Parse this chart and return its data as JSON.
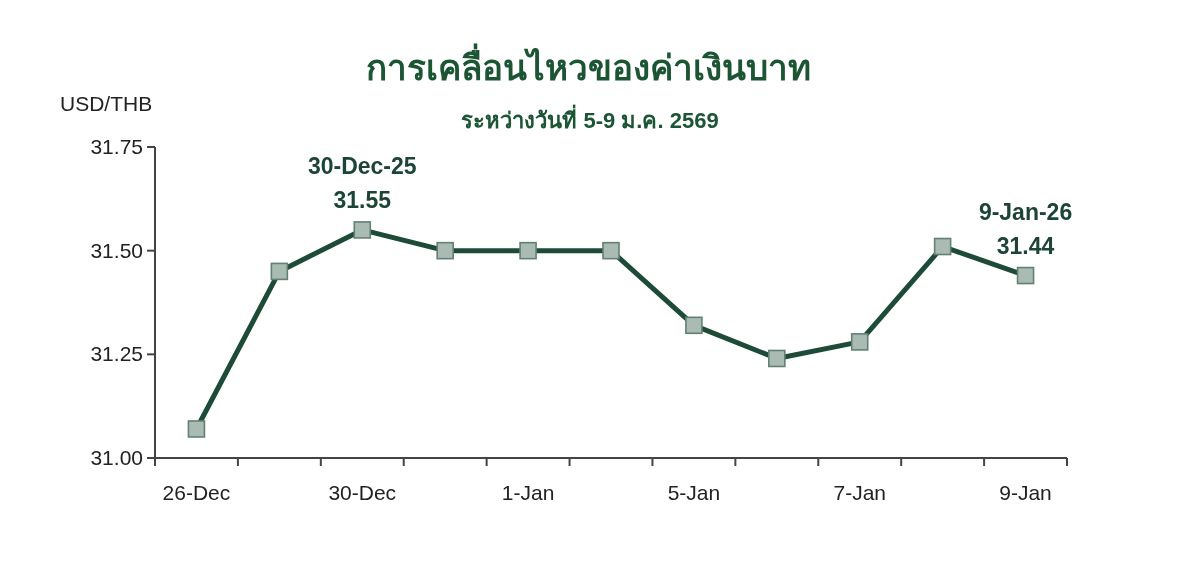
{
  "chart_data": {
    "type": "line",
    "title": "การเคลื่อนไหวของค่าเงินบาท",
    "subtitle": "ระหว่างวันที่ 5-9 ม.ค. 2569",
    "ylabel": "USD/THB",
    "categories": [
      "26-Dec",
      null,
      "30-Dec",
      null,
      "1-Jan",
      null,
      "5-Jan",
      null,
      "7-Jan",
      null,
      "9-Jan"
    ],
    "values": [
      31.07,
      31.45,
      31.55,
      31.5,
      31.5,
      31.5,
      31.32,
      31.24,
      31.28,
      31.51,
      31.44
    ],
    "color": "#1d4b38",
    "marker": "square",
    "line_style": "solid",
    "ylim": [
      31.0,
      31.75
    ],
    "yticks": [
      {
        "value": 31.0,
        "label": "31.00"
      },
      31.25,
      {
        "value": 31.5,
        "label": "31.50"
      },
      31.75
    ],
    "annotations": [
      {
        "text": "30-Dec-25\n31.55",
        "x": "30-Dec",
        "y": 31.55
      },
      {
        "text": "9-Jan-26\n31.44",
        "x": "9-Jan",
        "y": 31.44
      }
    ]
  }
}
